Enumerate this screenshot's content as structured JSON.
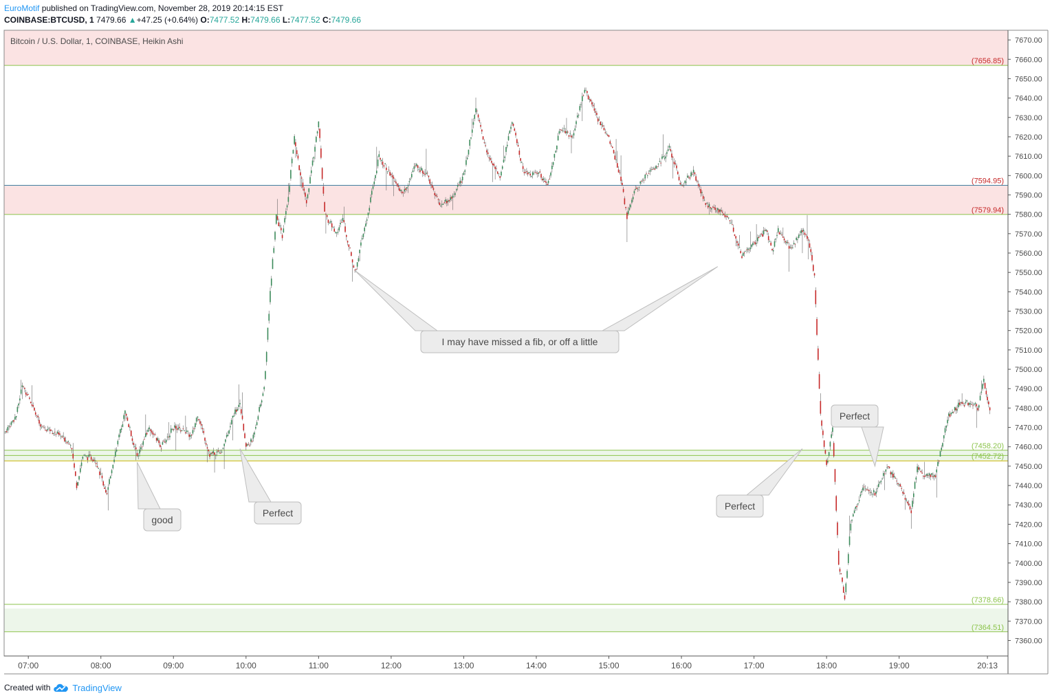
{
  "header": {
    "author": "EuroMotif",
    "published_text": " published on TradingView.com, November 28, 2019 20:14:15 EST",
    "symbol": "COINBASE:BTCUSD, 1",
    "last_price": "7479.66",
    "change_arrow": "▲",
    "change": "+47.25 (+0.64%)",
    "o_label": "O:",
    "o_value": "7477.52",
    "h_label": "H:",
    "h_value": "7479.66",
    "l_label": "L:",
    "l_value": "7477.52",
    "c_label": "C:",
    "c_value": "7479.66"
  },
  "footer": {
    "created_with": "Created with",
    "brand": "TradingView",
    "logo_icon": "tradingview-cloud-icon"
  },
  "colors": {
    "up": "#26a69a",
    "up_body": "#3b8a5a",
    "down": "#c62828",
    "zone_red": "#fbe3e3",
    "zone_green": "#edf6ea",
    "level_green": "#8bc34a",
    "level_blue": "#3f7f9f",
    "level_red": "#c62828",
    "level_yellow": "#c8b400"
  },
  "chart_data": {
    "type": "candlestick",
    "title": "Bitcoin / U.S. Dollar, 1, COINBASE, Heikin Ashi",
    "ylim": [
      7352,
      7675
    ],
    "y_ticks": [
      "7360.00",
      "7370.00",
      "7380.00",
      "7390.00",
      "7400.00",
      "7410.00",
      "7420.00",
      "7430.00",
      "7440.00",
      "7450.00",
      "7460.00",
      "7470.00",
      "7480.00",
      "7490.00",
      "7500.00",
      "7510.00",
      "7520.00",
      "7530.00",
      "7540.00",
      "7550.00",
      "7560.00",
      "7570.00",
      "7580.00",
      "7590.00",
      "7600.00",
      "7610.00",
      "7620.00",
      "7630.00",
      "7640.00",
      "7650.00",
      "7660.00",
      "7670.00"
    ],
    "x_ticks": [
      "07:00",
      "08:00",
      "09:00",
      "10:00",
      "11:00",
      "12:00",
      "13:00",
      "14:00",
      "15:00",
      "16:00",
      "17:00",
      "18:00",
      "19:00",
      "20:13"
    ],
    "x_time_range": [
      "06:40",
      "20:30"
    ],
    "price_path": [
      [
        "06:40",
        7467
      ],
      [
        "06:50",
        7476
      ],
      [
        "06:55",
        7492
      ],
      [
        "07:05",
        7480
      ],
      [
        "07:10",
        7470
      ],
      [
        "07:20",
        7468
      ],
      [
        "07:35",
        7462
      ],
      [
        "07:40",
        7440
      ],
      [
        "07:45",
        7455
      ],
      [
        "07:55",
        7454
      ],
      [
        "08:00",
        7445
      ],
      [
        "08:05",
        7435
      ],
      [
        "08:10",
        7452
      ],
      [
        "08:20",
        7478
      ],
      [
        "08:30",
        7455
      ],
      [
        "08:40",
        7470
      ],
      [
        "08:50",
        7460
      ],
      [
        "09:00",
        7470
      ],
      [
        "09:10",
        7468
      ],
      [
        "09:15",
        7465
      ],
      [
        "09:20",
        7477
      ],
      [
        "09:30",
        7456
      ],
      [
        "09:40",
        7458
      ],
      [
        "09:50",
        7477
      ],
      [
        "09:55",
        7482
      ],
      [
        "10:00",
        7460
      ],
      [
        "10:05",
        7463
      ],
      [
        "10:15",
        7490
      ],
      [
        "10:20",
        7540
      ],
      [
        "10:25",
        7580
      ],
      [
        "10:30",
        7568
      ],
      [
        "10:35",
        7590
      ],
      [
        "10:40",
        7620
      ],
      [
        "10:45",
        7600
      ],
      [
        "10:50",
        7585
      ],
      [
        "11:00",
        7628
      ],
      [
        "11:05",
        7580
      ],
      [
        "11:15",
        7570
      ],
      [
        "11:20",
        7578
      ],
      [
        "11:30",
        7550
      ],
      [
        "11:40",
        7578
      ],
      [
        "11:50",
        7610
      ],
      [
        "12:00",
        7600
      ],
      [
        "12:10",
        7590
      ],
      [
        "12:20",
        7605
      ],
      [
        "12:30",
        7600
      ],
      [
        "12:40",
        7585
      ],
      [
        "12:50",
        7588
      ],
      [
        "13:00",
        7600
      ],
      [
        "13:10",
        7635
      ],
      [
        "13:20",
        7610
      ],
      [
        "13:30",
        7600
      ],
      [
        "13:40",
        7628
      ],
      [
        "13:50",
        7600
      ],
      [
        "14:00",
        7602
      ],
      [
        "14:10",
        7596
      ],
      [
        "14:20",
        7625
      ],
      [
        "14:30",
        7620
      ],
      [
        "14:40",
        7645
      ],
      [
        "14:50",
        7630
      ],
      [
        "15:00",
        7620
      ],
      [
        "15:10",
        7598
      ],
      [
        "15:15",
        7578
      ],
      [
        "15:20",
        7590
      ],
      [
        "15:30",
        7600
      ],
      [
        "15:40",
        7605
      ],
      [
        "15:50",
        7614
      ],
      [
        "16:00",
        7595
      ],
      [
        "16:10",
        7602
      ],
      [
        "16:20",
        7585
      ],
      [
        "16:30",
        7582
      ],
      [
        "16:40",
        7578
      ],
      [
        "16:50",
        7558
      ],
      [
        "17:00",
        7565
      ],
      [
        "17:10",
        7572
      ],
      [
        "17:15",
        7560
      ],
      [
        "17:20",
        7572
      ],
      [
        "17:30",
        7562
      ],
      [
        "17:40",
        7572
      ],
      [
        "17:45",
        7568
      ],
      [
        "17:50",
        7548
      ],
      [
        "17:55",
        7476
      ],
      [
        "18:00",
        7450
      ],
      [
        "18:05",
        7470
      ],
      [
        "18:10",
        7400
      ],
      [
        "18:15",
        7382
      ],
      [
        "18:20",
        7420
      ],
      [
        "18:30",
        7440
      ],
      [
        "18:40",
        7436
      ],
      [
        "18:50",
        7450
      ],
      [
        "19:00",
        7440
      ],
      [
        "19:10",
        7426
      ],
      [
        "19:15",
        7450
      ],
      [
        "19:20",
        7446
      ],
      [
        "19:30",
        7445
      ],
      [
        "19:40",
        7475
      ],
      [
        "19:50",
        7482
      ],
      [
        "20:00",
        7483
      ],
      [
        "20:05",
        7480
      ],
      [
        "20:10",
        7494
      ],
      [
        "20:15",
        7479.66
      ]
    ],
    "levels": [
      {
        "label": "(7656.85)",
        "value": 7656.85,
        "line": "level_green",
        "text": "level_red"
      },
      {
        "label": "(7594.95)",
        "value": 7594.95,
        "line": "level_blue",
        "text": "level_red"
      },
      {
        "label": "(7579.94)",
        "value": 7579.94,
        "line": "level_green",
        "text": "level_red"
      },
      {
        "label": "(7458.20)",
        "value": 7458.2,
        "line": "level_green",
        "text": "level_green"
      },
      {
        "label": "",
        "value": 7455.5,
        "line": "level_green",
        "text": "level_green"
      },
      {
        "label": "(7452.72)",
        "value": 7452.72,
        "line": "level_yellow",
        "text": "level_green"
      },
      {
        "label": "(7378.66)",
        "value": 7378.66,
        "line": "level_green",
        "text": "level_green"
      },
      {
        "label": "(7364.51)",
        "value": 7364.51,
        "line": "level_green",
        "text": "level_green"
      }
    ],
    "zones": [
      {
        "from": 7656.85,
        "to": 7675,
        "color": "zone_red"
      },
      {
        "from": 7579.94,
        "to": 7594.95,
        "color": "zone_red"
      },
      {
        "from": 7452.72,
        "to": 7458.2,
        "color": "zone_green"
      },
      {
        "from": 7364.51,
        "to": 7376.5,
        "color": "zone_green"
      }
    ],
    "annotations": [
      {
        "text": "I may have missed a fib, or off a little",
        "pointers": [
          [
            "11:30",
            7551
          ],
          [
            "16:30",
            7553
          ]
        ]
      },
      {
        "text": "good",
        "pointers": [
          [
            "08:30",
            7452
          ]
        ]
      },
      {
        "text": "Perfect",
        "pointers": [
          [
            "09:55",
            7459
          ]
        ]
      },
      {
        "text": "Perfect",
        "pointers": [
          [
            "17:40",
            7459
          ]
        ]
      },
      {
        "text": "Perfect",
        "pointers": [
          [
            "18:40",
            7450
          ]
        ]
      }
    ]
  }
}
